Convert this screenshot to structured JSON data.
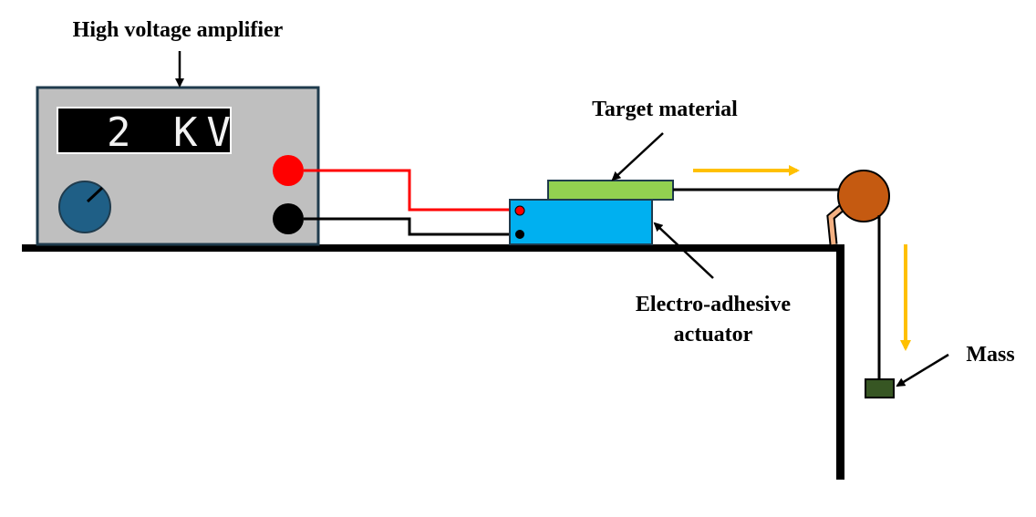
{
  "labels": {
    "amplifier": "High voltage amplifier",
    "target": "Target material",
    "actuator_line1": "Electro-adhesive",
    "actuator_line2": "actuator",
    "mass": "Mass"
  },
  "display": {
    "value": "2 KV"
  },
  "colors": {
    "positive_wire": "#ff0000",
    "negative_wire": "#000000",
    "amplifier_body": "#bfbfbf",
    "display_bg": "#000000",
    "knob": "#1f5f86",
    "target_material": "#92d050",
    "actuator": "#00b0f0",
    "pulley": "#c55a11",
    "pulley_bracket": "#f4b183",
    "mass": "#375623",
    "force_arrow": "#ffc000"
  },
  "icons": {
    "knob": "dial-knob-icon",
    "positive_terminal": "red-terminal-icon",
    "negative_terminal": "black-terminal-icon"
  }
}
